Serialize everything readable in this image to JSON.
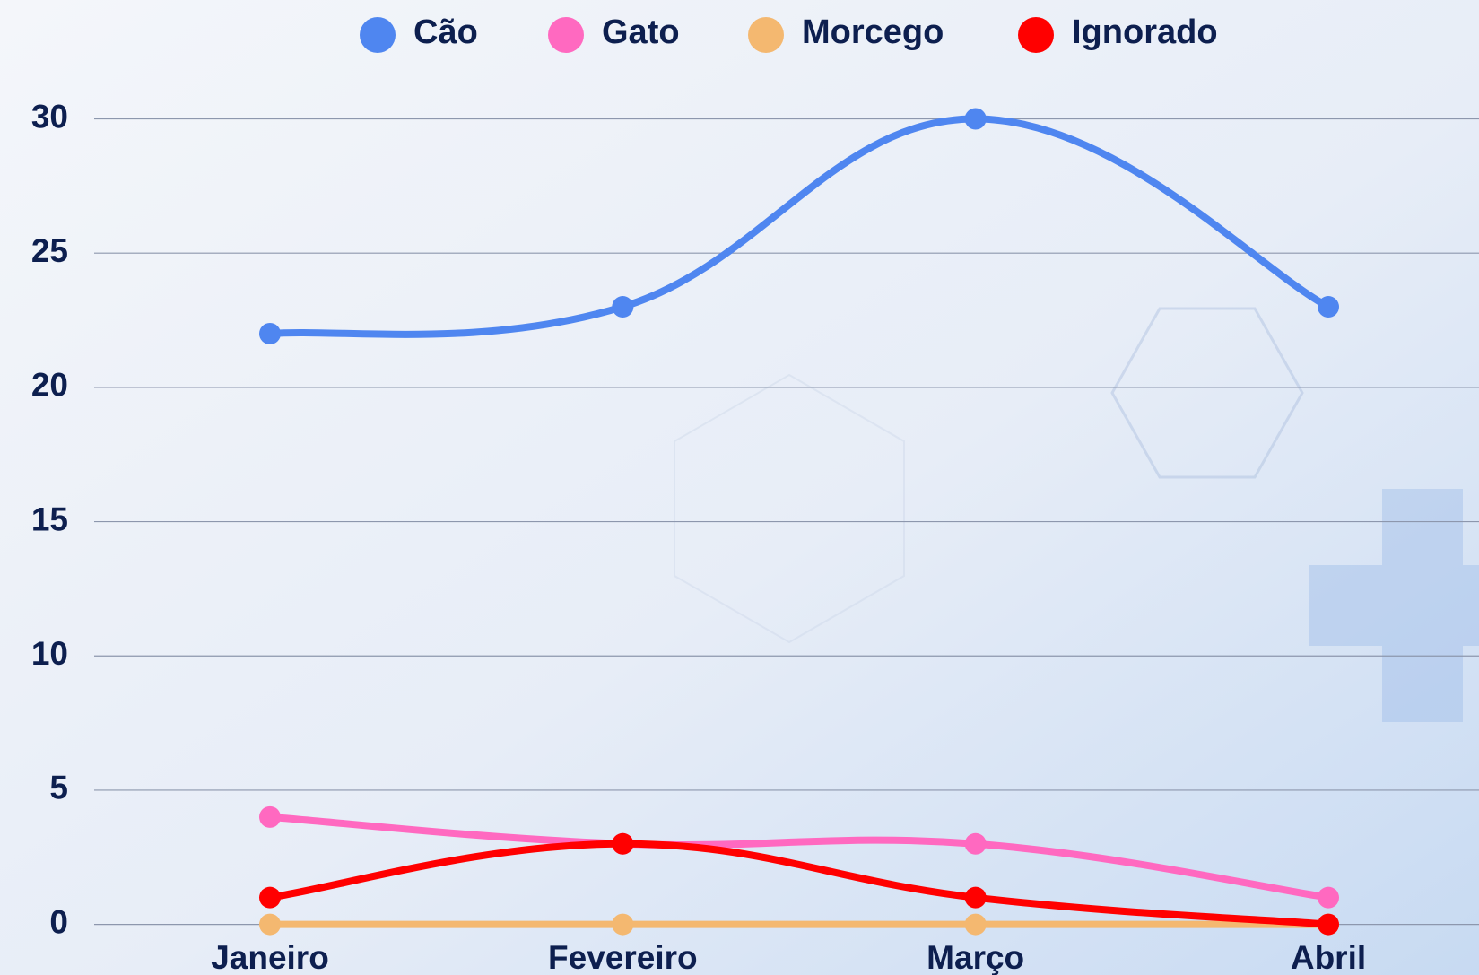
{
  "chart_data": {
    "type": "line",
    "categories": [
      "Janeiro",
      "Fevereiro",
      "Março",
      "Abril"
    ],
    "series": [
      {
        "name": "Cão",
        "color": "#4f86f0",
        "values": [
          22,
          23,
          30,
          23
        ]
      },
      {
        "name": "Gato",
        "color": "#ff69c0",
        "values": [
          4,
          3,
          3,
          1
        ]
      },
      {
        "name": "Morcego",
        "color": "#f4b870",
        "values": [
          0,
          0,
          0,
          0
        ]
      },
      {
        "name": "Ignorado",
        "color": "#ff0000",
        "values": [
          1,
          3,
          1,
          0
        ]
      }
    ],
    "ylim": [
      0,
      30
    ],
    "yticks": [
      0,
      5,
      10,
      15,
      20,
      25,
      30
    ],
    "grid": true,
    "legend": "top",
    "smooth": true
  }
}
